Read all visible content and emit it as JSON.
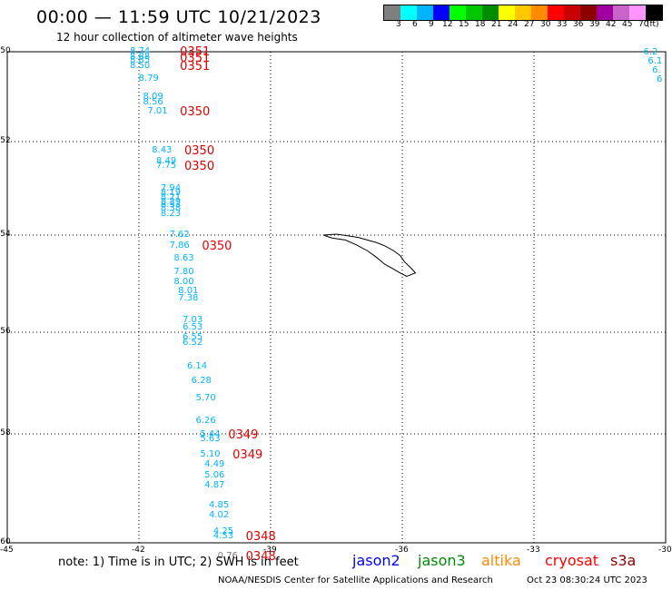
{
  "header": {
    "title": "00:00 — 11:59 UTC 10/21/2023",
    "subtitle": "12 hour collection of altimeter wave heights"
  },
  "scale": {
    "colors": [
      "#7f7f7f",
      "#00ffff",
      "#00b4ff",
      "#0000ff",
      "#00ff00",
      "#00c800",
      "#008c00",
      "#ffff00",
      "#ffc800",
      "#ff8c00",
      "#ff0000",
      "#c80000",
      "#8c0000",
      "#a000a0",
      "#c864c8",
      "#ff96ff",
      "#000000"
    ],
    "labels": [
      "3",
      "6",
      "9",
      "12",
      "15",
      "18",
      "21",
      "24",
      "27",
      "30",
      "33",
      "36",
      "39",
      "42",
      "45",
      "70",
      "(ft)"
    ]
  },
  "axes": {
    "lat_labels": [
      "-50",
      "-52",
      "-54",
      "-56",
      "-58",
      "-60"
    ],
    "lon_labels": [
      "-45",
      "-42",
      "-39",
      "-36",
      "-33",
      "-30"
    ]
  },
  "wave_heights": [
    {
      "v": "8.74",
      "lat": -50.0,
      "lon": -42.0
    },
    {
      "v": "8.88",
      "lat": -50.12,
      "lon": -42.0
    },
    {
      "v": "8.85",
      "lat": -50.2,
      "lon": -42.0
    },
    {
      "v": "8.50",
      "lat": -50.32,
      "lon": -42.0
    },
    {
      "v": "8.79",
      "lat": -50.6,
      "lon": -41.8
    },
    {
      "v": "8.09",
      "lat": -51.0,
      "lon": -41.7
    },
    {
      "v": "8.56",
      "lat": -51.13,
      "lon": -41.7
    },
    {
      "v": "7.01",
      "lat": -51.33,
      "lon": -41.6
    },
    {
      "v": "8.43",
      "lat": -52.2,
      "lon": -41.5
    },
    {
      "v": "8.49",
      "lat": -52.43,
      "lon": -41.4
    },
    {
      "v": "7.75",
      "lat": -52.53,
      "lon": -41.4
    },
    {
      "v": "7.94",
      "lat": -53.0,
      "lon": -41.3
    },
    {
      "v": "8.19",
      "lat": -53.1,
      "lon": -41.3
    },
    {
      "v": "8.21",
      "lat": -53.2,
      "lon": -41.3
    },
    {
      "v": "8.39",
      "lat": -53.3,
      "lon": -41.3
    },
    {
      "v": "8.53",
      "lat": -53.36,
      "lon": -41.3
    },
    {
      "v": "8.38",
      "lat": -53.44,
      "lon": -41.3
    },
    {
      "v": "8.23",
      "lat": -53.55,
      "lon": -41.3
    },
    {
      "v": "7.62",
      "lat": -54.0,
      "lon": -41.1
    },
    {
      "v": "7.86",
      "lat": -54.22,
      "lon": -41.1
    },
    {
      "v": "8.63",
      "lat": -54.48,
      "lon": -41.0
    },
    {
      "v": "7.80",
      "lat": -54.77,
      "lon": -41.0
    },
    {
      "v": "8.00",
      "lat": -54.97,
      "lon": -41.0
    },
    {
      "v": "8.01",
      "lat": -55.15,
      "lon": -40.9
    },
    {
      "v": "7.38",
      "lat": -55.3,
      "lon": -40.9
    },
    {
      "v": "7.03",
      "lat": -55.75,
      "lon": -40.8
    },
    {
      "v": "6.53",
      "lat": -55.9,
      "lon": -40.8
    },
    {
      "v": "6.55",
      "lat": -56.1,
      "lon": -40.8
    },
    {
      "v": "6.52",
      "lat": -56.22,
      "lon": -40.8
    },
    {
      "v": "6.14",
      "lat": -56.68,
      "lon": -40.7
    },
    {
      "v": "6.28",
      "lat": -56.97,
      "lon": -40.6
    },
    {
      "v": "5.70",
      "lat": -57.3,
      "lon": -40.5
    },
    {
      "v": "6.26",
      "lat": -57.75,
      "lon": -40.5
    },
    {
      "v": "5.44",
      "lat": -58.02,
      "lon": -40.4
    },
    {
      "v": "5.63",
      "lat": -58.1,
      "lon": -40.4
    },
    {
      "v": "5.10",
      "lat": -58.38,
      "lon": -40.4
    },
    {
      "v": "4.49",
      "lat": -58.57,
      "lon": -40.3
    },
    {
      "v": "5.06",
      "lat": -58.77,
      "lon": -40.3
    },
    {
      "v": "4.87",
      "lat": -58.95,
      "lon": -40.3
    },
    {
      "v": "4.85",
      "lat": -59.32,
      "lon": -40.2
    },
    {
      "v": "4.02",
      "lat": -59.5,
      "lon": -40.2
    },
    {
      "v": "4.25",
      "lat": -59.8,
      "lon": -40.1
    },
    {
      "v": "4.53",
      "lat": -59.88,
      "lon": -40.1
    },
    {
      "v": "0.76",
      "lat": -60.25,
      "lon": -40.0
    },
    {
      "v": "6.2",
      "lat": -50.02,
      "lon": -30.3
    },
    {
      "v": "6.1",
      "lat": -50.22,
      "lon": -30.2
    },
    {
      "v": "6.",
      "lat": -50.42,
      "lon": -30.1
    },
    {
      "v": "6",
      "lat": -50.62,
      "lon": -30.0
    }
  ],
  "time_labels": [
    {
      "v": "0351",
      "lat": -50.0,
      "lon": -40.9
    },
    {
      "v": "0351",
      "lat": -50.15,
      "lon": -40.9
    },
    {
      "v": "0351",
      "lat": -50.32,
      "lon": -40.9
    },
    {
      "v": "0350",
      "lat": -51.33,
      "lon": -40.9
    },
    {
      "v": "0350",
      "lat": -52.2,
      "lon": -40.8
    },
    {
      "v": "0350",
      "lat": -52.53,
      "lon": -40.8
    },
    {
      "v": "0350",
      "lat": -54.22,
      "lon": -40.4
    },
    {
      "v": "0349",
      "lat": -58.02,
      "lon": -39.8
    },
    {
      "v": "0349",
      "lat": -58.38,
      "lon": -39.7
    },
    {
      "v": "0348",
      "lat": -59.88,
      "lon": -39.4
    },
    {
      "v": "0348",
      "lat": -60.25,
      "lon": -39.4
    }
  ],
  "footer": {
    "note": "note: 1) Time is in UTC; 2) SWH is in feet",
    "satellites": [
      {
        "name": "jason2",
        "color": "#0000ff"
      },
      {
        "name": "jason3",
        "color": "#008c00"
      },
      {
        "name": "altika",
        "color": "#ff8c00"
      },
      {
        "name": "cryosat",
        "color": "#ff0000"
      },
      {
        "name": "s3a",
        "color": "#8c0000"
      }
    ],
    "credit": "NOAA/NESDIS Center for Satellite Applications and Research",
    "timestamp": "Oct 23 08:30:24 UTC 2023"
  }
}
